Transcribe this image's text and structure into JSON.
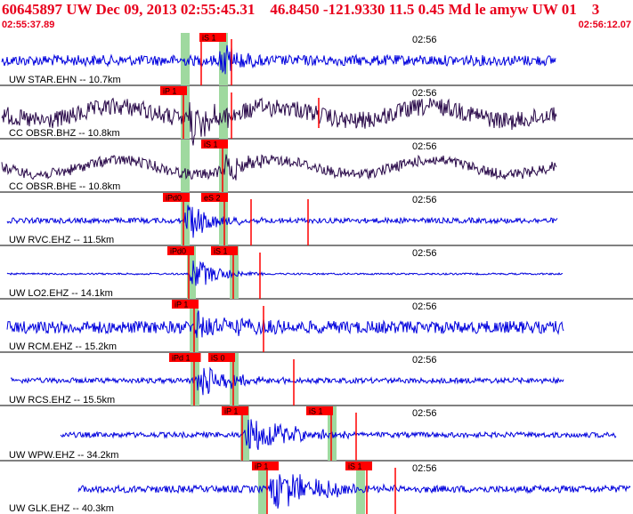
{
  "header": {
    "title": "60645897 UW Dec 09, 2013 02:55:45.31    46.8450 -121.9330 11.5 0.45 Md le amyw UW 01    3",
    "time_start": "02:55:37.89",
    "time_end": "02:56:12.07"
  },
  "colors": {
    "header_text": "#e8001c",
    "trace_blue": "#0000dd",
    "trace_dark": "#2a0a4a",
    "pick_box": "#ff0000",
    "pick_band": "#9fd99f",
    "label": "#000000",
    "separator": "#000000"
  },
  "panels": [
    {
      "label": "UW STAR.EHN -- 10.7km",
      "time": "02:56",
      "color": "blue",
      "picks": [
        {
          "text": "iS 1"
        }
      ]
    },
    {
      "label": "CC OBSR.BHZ -- 10.8km",
      "time": "02:56",
      "color": "dark",
      "picks": [
        {
          "text": "iP 1"
        }
      ]
    },
    {
      "label": "CC OBSR.BHE -- 10.8km",
      "time": "02:56",
      "color": "dark",
      "picks": [
        {
          "text": "iS 1"
        }
      ]
    },
    {
      "label": "UW RVC.EHZ -- 11.5km",
      "time": "02:56",
      "color": "blue",
      "picks": [
        {
          "text": "iPd0"
        },
        {
          "text": "eS 2"
        }
      ]
    },
    {
      "label": "UW LO2.EHZ -- 14.1km",
      "time": "02:56",
      "color": "blue",
      "picks": [
        {
          "text": "iPd0"
        },
        {
          "text": "iS 1"
        }
      ]
    },
    {
      "label": "UW RCM.EHZ -- 15.2km",
      "time": "02:56",
      "color": "blue",
      "picks": [
        {
          "text": "iP 1"
        }
      ]
    },
    {
      "label": "UW RCS.EHZ -- 15.5km",
      "time": "02:56",
      "color": "blue",
      "picks": [
        {
          "text": "iPd 1"
        },
        {
          "text": "iS 0"
        }
      ]
    },
    {
      "label": "UW WPW.EHZ -- 34.2km",
      "time": "02:56",
      "color": "blue",
      "picks": [
        {
          "text": "iP 1"
        },
        {
          "text": "iS 1"
        }
      ]
    },
    {
      "label": "UW GLK.EHZ -- 40.3km",
      "time": "02:56",
      "color": "blue",
      "picks": [
        {
          "text": "iP 1"
        },
        {
          "text": "iS 1"
        }
      ]
    }
  ]
}
